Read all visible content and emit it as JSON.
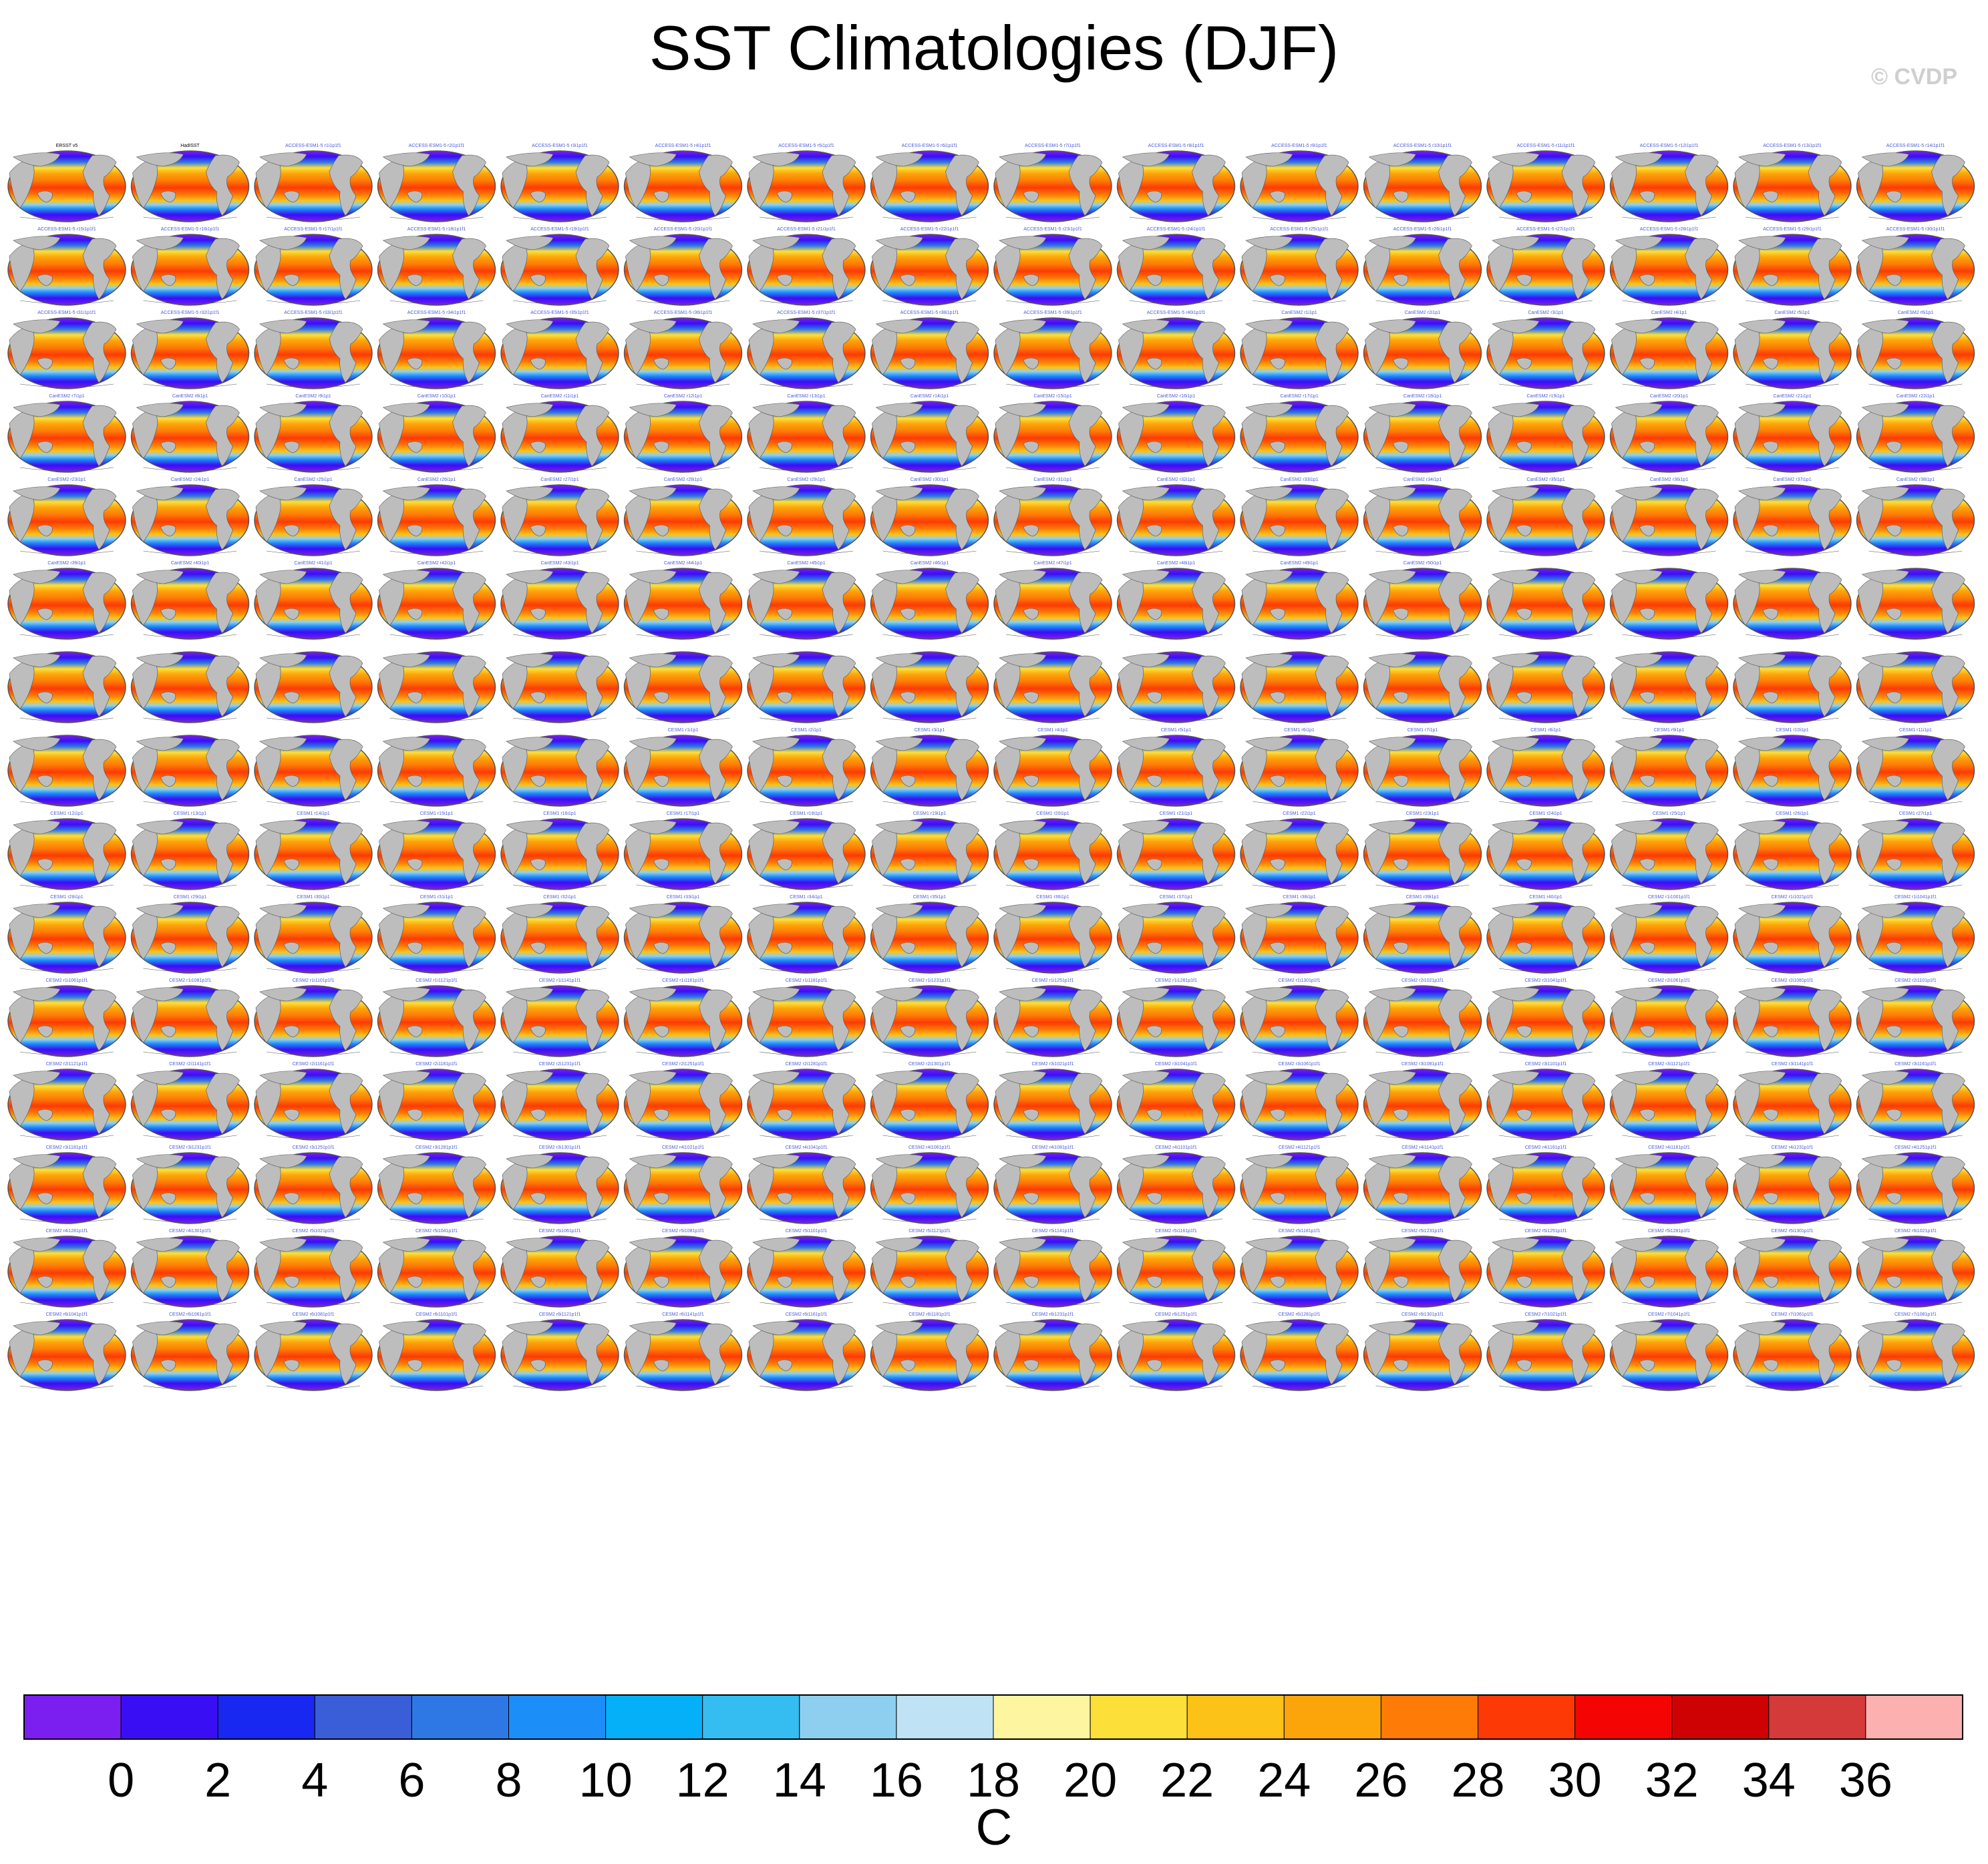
{
  "title": "SST Climatologies (DJF)",
  "watermark": "© CVDP",
  "chart_data": {
    "type": "heatmap",
    "description_grid": {
      "rows": 15,
      "cols": 16
    },
    "map_projection": "robinson-style global map, ocean SST colored, land gray",
    "panel_fill_colors": {
      "land": "#bdbdbd",
      "outline": "#555555"
    },
    "colorbar": {
      "unit": "C",
      "tick_labels": [
        "0",
        "2",
        "4",
        "6",
        "8",
        "10",
        "12",
        "14",
        "16",
        "18",
        "20",
        "22",
        "24",
        "26",
        "28",
        "30",
        "32",
        "34",
        "36"
      ],
      "colors": [
        "#7b1ef0",
        "#3a0ef5",
        "#1928f0",
        "#3a5ed8",
        "#2e78e6",
        "#1c8ef7",
        "#06b0f8",
        "#35bdf2",
        "#8ecff0",
        "#bfe2f5",
        "#fdf5a0",
        "#fddf3a",
        "#fcc218",
        "#fca50a",
        "#fd7b06",
        "#fd3a05",
        "#f50404",
        "#ce0202",
        "#d43a3a",
        "#fdb0b0"
      ]
    },
    "panel_titles": [
      "ERSST v5",
      "HadISST",
      "ACCESS-ESM1-5 r1i1p1f1",
      "ACCESS-ESM1-5 r2i1p1f1",
      "ACCESS-ESM1-5 r3i1p1f1",
      "ACCESS-ESM1-5 r4i1p1f1",
      "ACCESS-ESM1-5 r5i1p1f1",
      "ACCESS-ESM1-5 r6i1p1f1",
      "ACCESS-ESM1-5 r7i1p1f1",
      "ACCESS-ESM1-5 r8i1p1f1",
      "ACCESS-ESM1-5 r9i1p1f1",
      "ACCESS-ESM1-5 r10i1p1f1",
      "ACCESS-ESM1-5 r11i1p1f1",
      "ACCESS-ESM1-5 r12i1p1f1",
      "ACCESS-ESM1-5 r13i1p1f1",
      "ACCESS-ESM1-5 r14i1p1f1",
      "ACCESS-ESM1-5 r15i1p1f1",
      "ACCESS-ESM1-5 r16i1p1f1",
      "ACCESS-ESM1-5 r17i1p1f1",
      "ACCESS-ESM1-5 r18i1p1f1",
      "ACCESS-ESM1-5 r19i1p1f1",
      "ACCESS-ESM1-5 r20i1p1f1",
      "ACCESS-ESM1-5 r21i1p1f1",
      "ACCESS-ESM1-5 r22i1p1f1",
      "ACCESS-ESM1-5 r23i1p1f1",
      "ACCESS-ESM1-5 r24i1p1f1",
      "ACCESS-ESM1-5 r25i1p1f1",
      "ACCESS-ESM1-5 r26i1p1f1",
      "ACCESS-ESM1-5 r27i1p1f1",
      "ACCESS-ESM1-5 r28i1p1f1",
      "ACCESS-ESM1-5 r29i1p1f1",
      "ACCESS-ESM1-5 r30i1p1f1",
      "ACCESS-ESM1-5 r31i1p1f1",
      "ACCESS-ESM1-5 r32i1p1f1",
      "ACCESS-ESM1-5 r33i1p1f1",
      "ACCESS-ESM1-5 r34i1p1f1",
      "ACCESS-ESM1-5 r35i1p1f1",
      "ACCESS-ESM1-5 r36i1p1f1",
      "ACCESS-ESM1-5 r37i1p1f1",
      "ACCESS-ESM1-5 r38i1p1f1",
      "ACCESS-ESM1-5 r39i1p1f1",
      "ACCESS-ESM1-5 r40i1p1f1",
      "CanESM2 r1i1p1",
      "CanESM2 r2i1p1",
      "CanESM2 r3i1p1",
      "CanESM2 r4i1p1",
      "CanESM2 r5i1p1",
      "CanESM2 r6i1p1",
      "CanESM2 r7i1p1",
      "CanESM2 r8i1p1",
      "CanESM2 r9i1p1",
      "CanESM2 r10i1p1",
      "CanESM2 r11i1p1",
      "CanESM2 r12i1p1",
      "CanESM2 r13i1p1",
      "CanESM2 r14i1p1",
      "CanESM2 r15i1p1",
      "CanESM2 r16i1p1",
      "CanESM2 r17i1p1",
      "CanESM2 r18i1p1",
      "CanESM2 r19i1p1",
      "CanESM2 r20i1p1",
      "CanESM2 r21i1p1",
      "CanESM2 r22i1p1",
      "CanESM2 r23i1p1",
      "CanESM2 r24i1p1",
      "CanESM2 r25i1p1",
      "CanESM2 r26i1p1",
      "CanESM2 r27i1p1",
      "CanESM2 r28i1p1",
      "CanESM2 r29i1p1",
      "CanESM2 r30i1p1",
      "CanESM2 r31i1p1",
      "CanESM2 r32i1p1",
      "CanESM2 r33i1p1",
      "CanESM2 r34i1p1",
      "CanESM2 r35i1p1",
      "CanESM2 r36i1p1",
      "CanESM2 r37i1p1",
      "CanESM2 r38i1p1",
      "CanESM2 r39i1p1",
      "CanESM2 r40i1p1",
      "CanESM2 r41i1p1",
      "CanESM2 r42i1p1",
      "CanESM2 r43i1p1",
      "CanESM2 r44i1p1",
      "CanESM2 r45i1p1",
      "CanESM2 r46i1p1",
      "CanESM2 r47i1p1",
      "CanESM2 r48i1p1",
      "CanESM2 r49i1p1",
      "CanESM2 r50i1p1",
      "",
      "",
      "",
      "",
      "",
      "",
      "",
      "",
      "",
      "",
      "",
      "",
      "",
      "",
      "",
      "",
      "",
      "",
      "",
      "",
      "",
      "",
      "",
      "",
      "",
      "CESM1 r1i1p1",
      "CESM1 r2i1p1",
      "CESM1 r3i1p1",
      "CESM1 r4i1p1",
      "CESM1 r5i1p1",
      "CESM1 r6i1p1",
      "CESM1 r7i1p1",
      "CESM1 r8i1p1",
      "CESM1 r9i1p1",
      "CESM1 r10i1p1",
      "CESM1 r11i1p1",
      "CESM1 r12i1p1",
      "CESM1 r13i1p1",
      "CESM1 r14i1p1",
      "CESM1 r15i1p1",
      "CESM1 r16i1p1",
      "CESM1 r17i1p1",
      "CESM1 r18i1p1",
      "CESM1 r19i1p1",
      "CESM1 r20i1p1",
      "CESM1 r21i1p1",
      "CESM1 r22i1p1",
      "CESM1 r23i1p1",
      "CESM1 r24i1p1",
      "CESM1 r25i1p1",
      "CESM1 r26i1p1",
      "CESM1 r27i1p1",
      "CESM1 r28i1p1",
      "CESM1 r29i1p1",
      "CESM1 r30i1p1",
      "CESM1 r31i1p1",
      "CESM1 r32i1p1",
      "CESM1 r33i1p1",
      "CESM1 r34i1p1",
      "CESM1 r35i1p1",
      "CESM1 r36i1p1",
      "CESM1 r37i1p1",
      "CESM1 r38i1p1",
      "CESM1 r39i1p1",
      "CESM1 r40i1p1",
      "CESM2 r1i1001p1f1",
      "CESM2 r1i1021p1f1",
      "CESM2 r1i1041p1f1",
      "CESM2 r1i1061p1f1",
      "CESM2 r1i1081p1f1",
      "CESM2 r1i1101p1f1",
      "CESM2 r1i1121p1f1",
      "CESM2 r1i1141p1f1",
      "CESM2 r1i1161p1f1",
      "CESM2 r1i1181p1f1",
      "CESM2 r1i1231p1f1",
      "CESM2 r1i1251p1f1",
      "CESM2 r1i1281p1f1",
      "CESM2 r1i1301p1f1",
      "CESM2 r2i1021p1f1",
      "CESM2 r2i1041p1f1",
      "CESM2 r2i1061p1f1",
      "CESM2 r2i1081p1f1",
      "CESM2 r2i1101p1f1",
      "CESM2 r2i1121p1f1",
      "CESM2 r2i1141p1f1",
      "CESM2 r2i1161p1f1",
      "CESM2 r2i1181p1f1",
      "CESM2 r2i1231p1f1",
      "CESM2 r2i1251p1f1",
      "CESM2 r2i1281p1f1",
      "CESM2 r2i1301p1f1",
      "CESM2 r3i1021p1f1",
      "CESM2 r3i1041p1f1",
      "CESM2 r3i1061p1f1",
      "CESM2 r3i1081p1f1",
      "CESM2 r3i1101p1f1",
      "CESM2 r3i1121p1f1",
      "CESM2 r3i1141p1f1",
      "CESM2 r3i1161p1f1",
      "CESM2 r3i1181p1f1",
      "CESM2 r3i1231p1f1",
      "CESM2 r3i1251p1f1",
      "CESM2 r3i1281p1f1",
      "CESM2 r3i1301p1f1",
      "CESM2 r4i1021p1f1",
      "CESM2 r4i1041p1f1",
      "CESM2 r4i1061p1f1",
      "CESM2 r4i1081p1f1",
      "CESM2 r4i1101p1f1",
      "CESM2 r4i1121p1f1",
      "CESM2 r4i1141p1f1",
      "CESM2 r4i1161p1f1",
      "CESM2 r4i1181p1f1",
      "CESM2 r4i1231p1f1",
      "CESM2 r4i1251p1f1",
      "CESM2 r4i1281p1f1",
      "CESM2 r4i1301p1f1",
      "CESM2 r5i1021p1f1",
      "CESM2 r5i1041p1f1",
      "CESM2 r5i1061p1f1",
      "CESM2 r5i1081p1f1",
      "CESM2 r5i1101p1f1",
      "CESM2 r5i1121p1f1",
      "CESM2 r5i1141p1f1",
      "CESM2 r5i1161p1f1",
      "CESM2 r5i1181p1f1",
      "CESM2 r5i1231p1f1",
      "CESM2 r5i1251p1f1",
      "CESM2 r5i1281p1f1",
      "CESM2 r5i1301p1f1",
      "CESM2 r6i1021p1f1",
      "CESM2 r6i1041p1f1",
      "CESM2 r6i1061p1f1",
      "CESM2 r6i1081p1f1",
      "CESM2 r6i1101p1f1",
      "CESM2 r6i1121p1f1",
      "CESM2 r6i1141p1f1",
      "CESM2 r6i1161p1f1",
      "CESM2 r6i1181p1f1",
      "CESM2 r6i1231p1f1",
      "CESM2 r6i1251p1f1",
      "CESM2 r6i1281p1f1",
      "CESM2 r6i1301p1f1",
      "CESM2 r7i1021p1f1",
      "CESM2 r7i1041p1f1",
      "CESM2 r7i1061p1f1",
      "CESM2 r7i1081p1f1"
    ]
  }
}
